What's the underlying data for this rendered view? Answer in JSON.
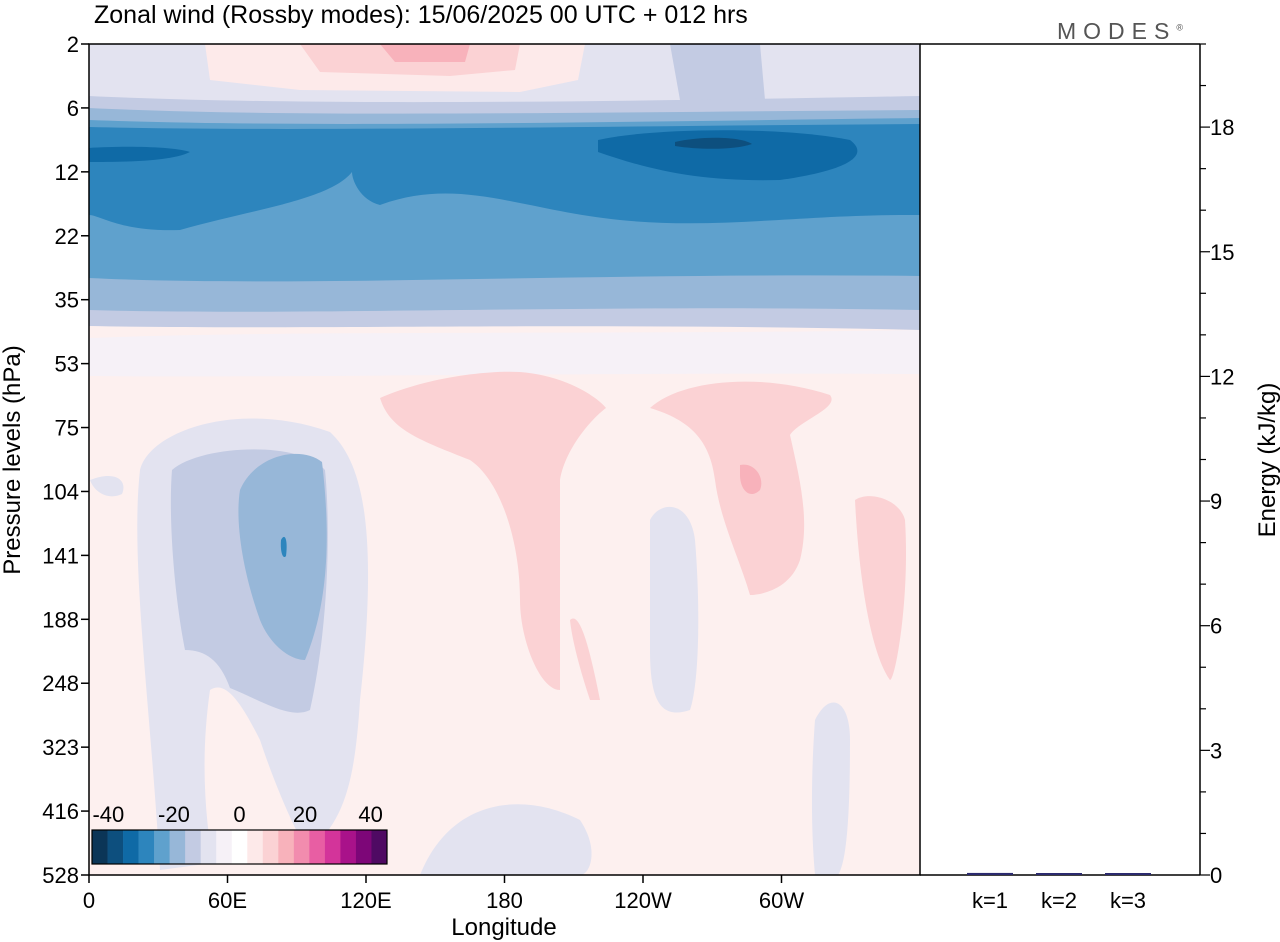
{
  "title": "Zonal wind (Rossby modes):  15/06/2025  00 UTC  + 012 hrs",
  "logo": {
    "text": "MODES",
    "mark": "®"
  },
  "colors": {
    "scale": [
      "#0b3557",
      "#0d4f7e",
      "#0f6aa6",
      "#2d85bd",
      "#5fa1cd",
      "#97b7d8",
      "#c3cbe3",
      "#e3e3f0",
      "#f6f1f7",
      "#ffffff",
      "#fde9e9",
      "#fbd2d4",
      "#f8b2bb",
      "#f28cae",
      "#e85ea3",
      "#d3349a",
      "#a9128a",
      "#7d0678",
      "#4f0a63"
    ]
  },
  "chart_data": [
    {
      "type": "heatmap",
      "title": "Zonal wind (Rossby modes):  15/06/2025  00 UTC  + 012 hrs",
      "xlabel": "Longitude",
      "ylabel": "Pressure levels (hPa)",
      "x_ticks": [
        "0",
        "60E",
        "120E",
        "180",
        "120W",
        "60W"
      ],
      "x_tick_values": [
        0,
        60,
        120,
        180,
        240,
        300
      ],
      "xlim": [
        0,
        360
      ],
      "y_ticks": [
        "2",
        "6",
        "12",
        "22",
        "35",
        "53",
        "75",
        "104",
        "141",
        "188",
        "248",
        "323",
        "416",
        "528"
      ],
      "colorbar": {
        "ticks": [
          "-40",
          "-20",
          "0",
          "20",
          "40"
        ],
        "min": -45,
        "max": 45,
        "step": 5
      },
      "fields": [
        {
          "lon": 195,
          "level_index": 0.4,
          "value": 10
        },
        {
          "lon": 210,
          "level_index": 2.3,
          "value": -30
        },
        {
          "lon": 90,
          "level_index": 1.9,
          "value": -25
        },
        {
          "lon": 90,
          "level_index": 7.8,
          "value": -12
        },
        {
          "lon": 200,
          "level_index": 7.0,
          "value": 6
        },
        {
          "lon": 285,
          "level_index": 7.5,
          "value": 8
        }
      ]
    },
    {
      "type": "bar",
      "categories": [
        "k=1",
        "k=2",
        "k=3"
      ],
      "values": [
        0.05,
        0.03,
        0.01
      ],
      "ylabel": "Energy (kJ/kg)",
      "y_ticks": [
        "0",
        "3",
        "6",
        "9",
        "12",
        "15",
        "18"
      ],
      "ylim": [
        0,
        20
      ]
    }
  ]
}
